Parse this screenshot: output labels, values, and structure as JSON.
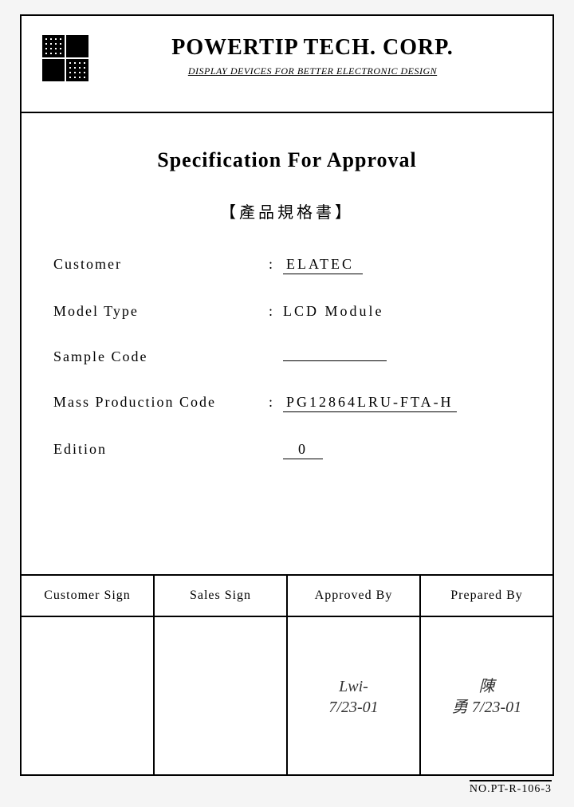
{
  "header": {
    "company_name": "POWERTIP  TECH.  CORP.",
    "tagline": "DISPLAY DEVICES FOR BETTER ELECTRONIC DESIGN"
  },
  "body": {
    "title": "Specification  For  Approval",
    "subtitle": "【產品規格書】",
    "fields": {
      "customer": {
        "label": "Customer",
        "value": "ELATEC"
      },
      "model_type": {
        "label": "Model Type",
        "value": "LCD Module"
      },
      "sample_code": {
        "label": "Sample Code",
        "value": ""
      },
      "mass_prod": {
        "label": "Mass Production Code",
        "value": "PG12864LRU-FTA-H"
      },
      "edition": {
        "label": "Edition",
        "value": "0"
      }
    }
  },
  "signatures": {
    "columns": [
      {
        "header": "Customer  Sign",
        "body": ""
      },
      {
        "header": "Sales  Sign",
        "body": ""
      },
      {
        "header": "Approved  By",
        "body": "Lwi-\n7/23-01"
      },
      {
        "header": "Prepared  By",
        "body": "陳\n勇 7/23-01"
      }
    ]
  },
  "doc_number": "NO.PT-R-106-3",
  "colors": {
    "border": "#000000",
    "background": "#ffffff",
    "page_bg": "#f5f5f5"
  }
}
